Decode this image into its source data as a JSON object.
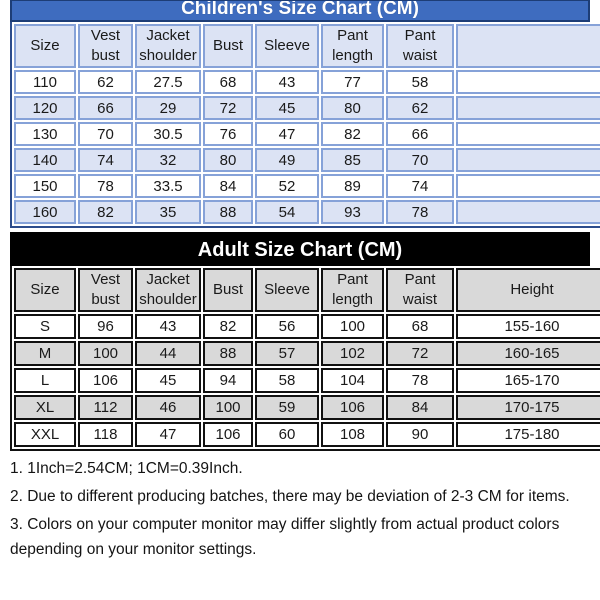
{
  "children_chart": {
    "title": "Children's Size Chart (CM)",
    "columns": [
      "Size",
      "Vest bust",
      "Jacket shoulder",
      "Bust",
      "Sleeve",
      "Pant length",
      "Pant waist",
      ""
    ],
    "rows": [
      [
        "110",
        "62",
        "27.5",
        "68",
        "43",
        "77",
        "58",
        ""
      ],
      [
        "120",
        "66",
        "29",
        "72",
        "45",
        "80",
        "62",
        ""
      ],
      [
        "130",
        "70",
        "30.5",
        "76",
        "47",
        "82",
        "66",
        ""
      ],
      [
        "140",
        "74",
        "32",
        "80",
        "49",
        "85",
        "70",
        ""
      ],
      [
        "150",
        "78",
        "33.5",
        "84",
        "52",
        "89",
        "74",
        ""
      ],
      [
        "160",
        "82",
        "35",
        "88",
        "54",
        "93",
        "78",
        ""
      ]
    ]
  },
  "adult_chart": {
    "title": "Adult Size Chart (CM)",
    "columns": [
      "Size",
      "Vest bust",
      "Jacket shoulder",
      "Bust",
      "Sleeve",
      "Pant length",
      "Pant waist",
      "Height"
    ],
    "rows": [
      [
        "S",
        "96",
        "43",
        "82",
        "56",
        "100",
        "68",
        "155-160"
      ],
      [
        "M",
        "100",
        "44",
        "88",
        "57",
        "102",
        "72",
        "160-165"
      ],
      [
        "L",
        "106",
        "45",
        "94",
        "58",
        "104",
        "78",
        "165-170"
      ],
      [
        "XL",
        "112",
        "46",
        "100",
        "59",
        "106",
        "84",
        "170-175"
      ],
      [
        "XXL",
        "118",
        "47",
        "106",
        "60",
        "108",
        "90",
        "175-180"
      ]
    ]
  },
  "notes": [
    "1. 1Inch=2.54CM; 1CM=0.39Inch.",
    "2. Due to different producing batches, there may be deviation of 2-3 CM for items.",
    "3. Colors on your computer monitor may differ slightly from actual product colors depending on your monitor settings."
  ],
  "colors": {
    "children_title_bg": "#3e6cbf",
    "children_title_border": "#1d3d76",
    "children_cell_border": "#86a2d8",
    "children_alt_row_bg": "#dce3f4",
    "adult_title_bg": "#000000",
    "adult_cell_border": "#111111",
    "adult_alt_row_bg": "#d9d9d9",
    "title_text": "#ffffff",
    "body_text": "#1a1a1a",
    "row_bg": "#ffffff"
  }
}
